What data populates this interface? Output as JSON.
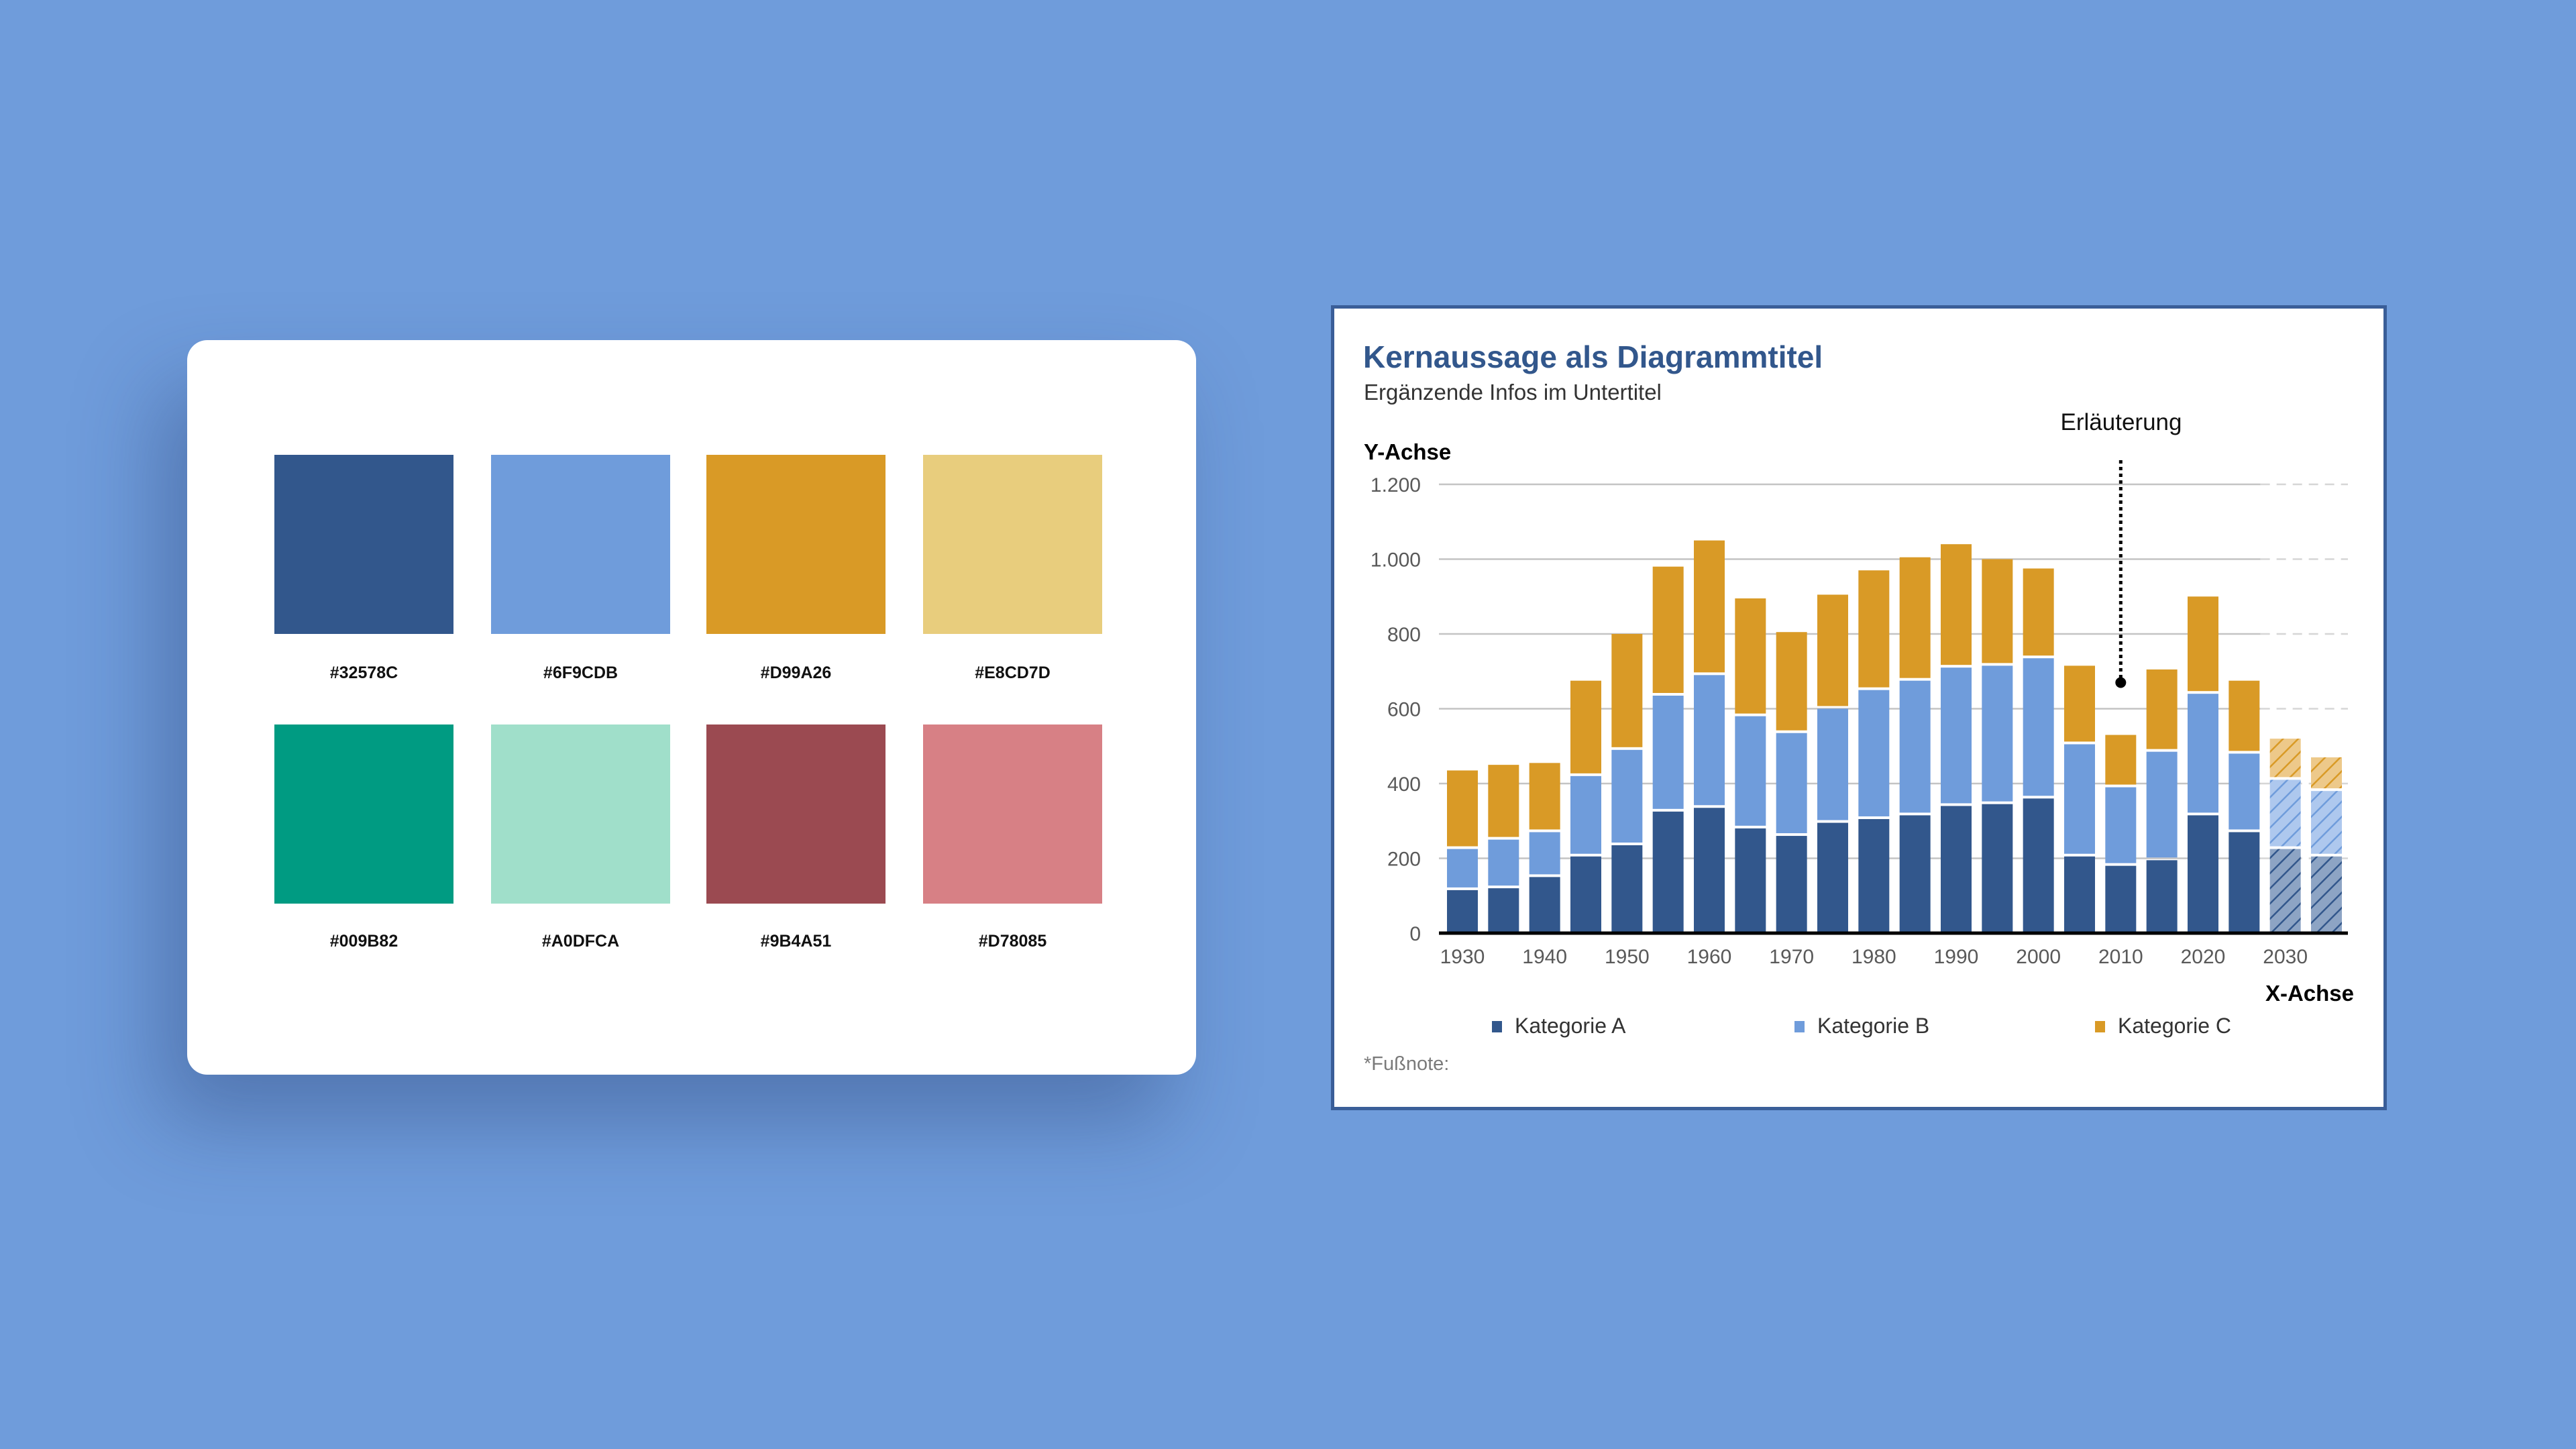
{
  "palette": {
    "swatches": [
      {
        "label": "#32578C",
        "color": "#32578C"
      },
      {
        "label": "#6F9CDB",
        "color": "#6F9CDB"
      },
      {
        "label": "#D99A26",
        "color": "#D99A26"
      },
      {
        "label": "#E8CD7D",
        "color": "#E8CD7D"
      },
      {
        "label": "#009B82",
        "color": "#009B82"
      },
      {
        "label": "#A0DFCA",
        "color": "#A0DFCA"
      },
      {
        "label": "#9B4A51",
        "color": "#9B4A51"
      },
      {
        "label": "#D78085",
        "color": "#D78085"
      }
    ]
  },
  "chart_data": {
    "type": "bar",
    "stacked": true,
    "title": "Kernaussage als Diagrammtitel",
    "subtitle": "Ergänzende Infos im Untertitel",
    "ylabel": "Y-Achse",
    "xlabel": "X-Achse",
    "footnote": "*Fußnote:",
    "ylim": [
      0,
      1200
    ],
    "yticks": [
      0,
      200,
      400,
      600,
      800,
      1000,
      1200
    ],
    "ytick_labels": [
      "0",
      "200",
      "400",
      "600",
      "800",
      "1.000",
      "1.200"
    ],
    "xtick_labels": [
      "1930",
      "1940",
      "1950",
      "1960",
      "1970",
      "1980",
      "1990",
      "2000",
      "2010",
      "2020",
      "2030"
    ],
    "grid": true,
    "legend_position": "bottom",
    "categories": [
      1930,
      1935,
      1940,
      1945,
      1950,
      1955,
      1960,
      1965,
      1970,
      1975,
      1980,
      1985,
      1990,
      1995,
      2000,
      2005,
      2010,
      2015,
      2020,
      2025,
      2030,
      2035
    ],
    "forecast_categories": [
      2030,
      2035
    ],
    "series": [
      {
        "name": "Kategorie A",
        "color": "#32578C",
        "values": [
          115,
          120,
          150,
          205,
          235,
          325,
          335,
          280,
          260,
          295,
          305,
          315,
          340,
          345,
          360,
          205,
          180,
          195,
          315,
          270,
          225,
          205
        ]
      },
      {
        "name": "Kategorie B",
        "color": "#6F9CDB",
        "values": [
          110,
          130,
          120,
          215,
          255,
          310,
          355,
          300,
          275,
          305,
          345,
          360,
          370,
          370,
          375,
          300,
          210,
          290,
          325,
          210,
          185,
          175
        ]
      },
      {
        "name": "Kategorie C",
        "color": "#D99A26",
        "values": [
          210,
          200,
          185,
          255,
          310,
          345,
          360,
          315,
          270,
          305,
          320,
          330,
          330,
          285,
          240,
          210,
          140,
          220,
          260,
          195,
          110,
          90
        ]
      }
    ],
    "annotation": {
      "text": "Erläuterung",
      "x": 2010,
      "y": 670
    }
  }
}
